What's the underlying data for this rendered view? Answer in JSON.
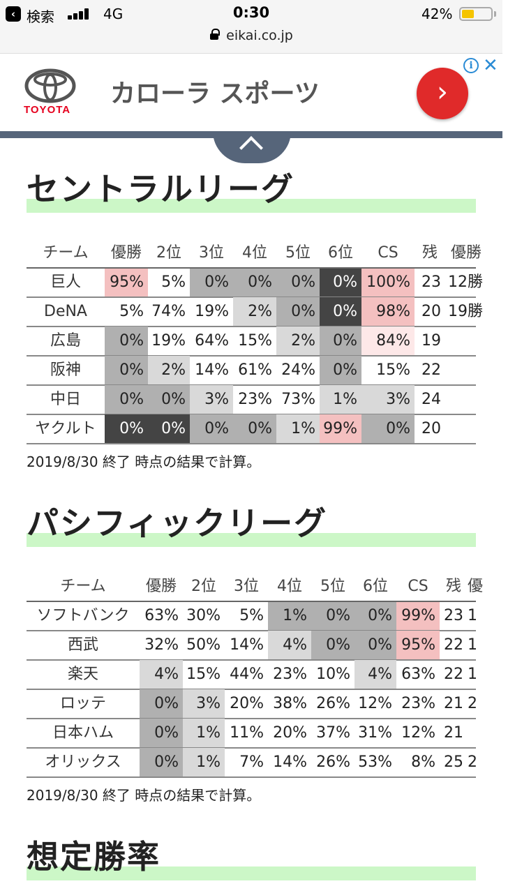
{
  "status_bar": {
    "back_label": "検索",
    "network": "4G",
    "time": "0:30",
    "battery_percent": "42%",
    "battery_level": 0.42,
    "icons": [
      "back-icon",
      "signal-icon",
      "battery-icon"
    ]
  },
  "url_bar": {
    "url": "eikai.co.jp",
    "icon": "lock-icon"
  },
  "ad": {
    "brand": "TOYOTA",
    "text": "カローラ スポーツ",
    "go_symbol": "›",
    "info_symbol": "i",
    "close_symbol": "✕"
  },
  "central": {
    "title": "セントラルリーグ",
    "columns": [
      "チーム",
      "優勝",
      "2位",
      "3位",
      "4位",
      "5位",
      "6位",
      "CS",
      "残",
      "優勝"
    ],
    "rows": [
      {
        "team": "巨人",
        "values": [
          "95%",
          "5%",
          "0%",
          "0%",
          "0%",
          "0%",
          "100%",
          "23",
          "12勝"
        ]
      },
      {
        "team": "DeNA",
        "values": [
          "5%",
          "74%",
          "19%",
          "2%",
          "0%",
          "0%",
          "98%",
          "20",
          "19勝"
        ]
      },
      {
        "team": "広島",
        "values": [
          "0%",
          "19%",
          "64%",
          "15%",
          "2%",
          "0%",
          "84%",
          "19",
          ""
        ]
      },
      {
        "team": "阪神",
        "values": [
          "0%",
          "2%",
          "14%",
          "61%",
          "24%",
          "0%",
          "15%",
          "22",
          ""
        ]
      },
      {
        "team": "中日",
        "values": [
          "0%",
          "0%",
          "3%",
          "23%",
          "73%",
          "1%",
          "3%",
          "24",
          ""
        ]
      },
      {
        "team": "ヤクルト",
        "values": [
          "0%",
          "0%",
          "0%",
          "0%",
          "1%",
          "99%",
          "0%",
          "20",
          ""
        ]
      }
    ],
    "note": "2019/8/30 終了 時点の結果で計算。"
  },
  "pacific": {
    "title": "パシフィックリーグ",
    "columns": [
      "チーム",
      "優勝",
      "2位",
      "3位",
      "4位",
      "5位",
      "6位",
      "CS",
      "残",
      "優"
    ],
    "rows": [
      {
        "team": "ソフトバンク",
        "values": [
          "63%",
          "30%",
          "5%",
          "1%",
          "0%",
          "0%",
          "99%",
          "23",
          "1"
        ]
      },
      {
        "team": "西武",
        "values": [
          "32%",
          "50%",
          "14%",
          "4%",
          "0%",
          "0%",
          "95%",
          "22",
          "1"
        ]
      },
      {
        "team": "楽天",
        "values": [
          "4%",
          "15%",
          "44%",
          "23%",
          "10%",
          "4%",
          "63%",
          "22",
          "1"
        ]
      },
      {
        "team": "ロッテ",
        "values": [
          "0%",
          "3%",
          "20%",
          "38%",
          "26%",
          "12%",
          "23%",
          "21",
          "2"
        ]
      },
      {
        "team": "日本ハム",
        "values": [
          "0%",
          "1%",
          "11%",
          "20%",
          "37%",
          "31%",
          "12%",
          "21",
          ""
        ]
      },
      {
        "team": "オリックス",
        "values": [
          "0%",
          "1%",
          "7%",
          "14%",
          "26%",
          "53%",
          "8%",
          "25",
          "2"
        ]
      }
    ],
    "note": "2019/8/30 終了 時点の結果で計算。"
  },
  "next_section": {
    "title": "想定勝率"
  },
  "colors": {
    "highlight_green": "#ccf7c7",
    "zero_dark": "#444444",
    "zero_mid": "#b0b0b0",
    "zero_light": "#d9d9d9",
    "pink_strong": "#f4c0c0",
    "pink_light": "#fde8e8",
    "ad_button_red": "#e02a2a",
    "collapse_bar": "#56657a"
  }
}
